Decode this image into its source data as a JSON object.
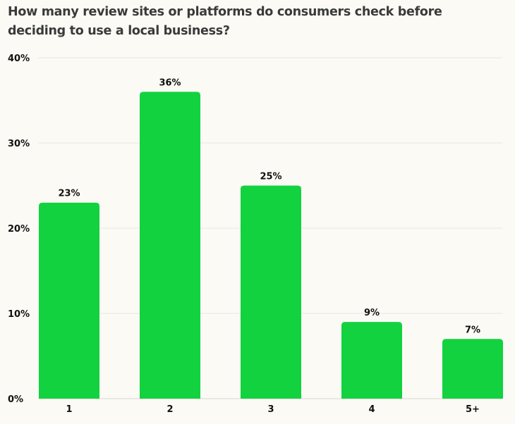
{
  "chart_data": {
    "type": "bar",
    "title": "How many review sites or platforms do consumers check before deciding to use a local business?",
    "categories": [
      "1",
      "2",
      "3",
      "4",
      "5+"
    ],
    "values": [
      23,
      36,
      25,
      9,
      7
    ],
    "data_labels": [
      "23%",
      "36%",
      "25%",
      "9%",
      "7%"
    ],
    "ylim": [
      0,
      40
    ],
    "yticks": [
      0,
      10,
      20,
      30,
      40
    ],
    "ytick_labels": [
      "0%",
      "10%",
      "20%",
      "30%",
      "40%"
    ],
    "grid": true,
    "legend": "none",
    "colors": {
      "bar": "#12d23f",
      "background": "#fbfaf5",
      "grid": "#e8e6e0"
    }
  }
}
